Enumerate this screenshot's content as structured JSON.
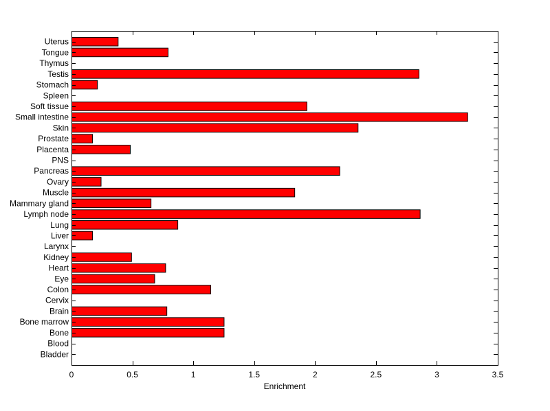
{
  "chart_data": {
    "type": "bar",
    "orientation": "horizontal",
    "title": "",
    "xlabel": "Enrichment",
    "ylabel": "",
    "xlim": [
      0,
      3.5
    ],
    "xticks": [
      "0",
      "0.5",
      "1",
      "1.5",
      "2",
      "2.5",
      "3",
      "3.5"
    ],
    "grid": false,
    "bar_color": "#ff0000",
    "bar_edge_color": "#000000",
    "categories": [
      "Uterus",
      "Tongue",
      "Thymus",
      "Testis",
      "Stomach",
      "Spleen",
      "Soft tissue",
      "Small intestine",
      "Skin",
      "Prostate",
      "Placenta",
      "PNS",
      "Pancreas",
      "Ovary",
      "Muscle",
      "Mammary gland",
      "Lymph node",
      "Lung",
      "Liver",
      "Larynx",
      "Kidney",
      "Heart",
      "Eye",
      "Colon",
      "Cervix",
      "Brain",
      "Bone marrow",
      "Bone",
      "Blood",
      "Bladder"
    ],
    "values": [
      0.38,
      0.79,
      0,
      2.85,
      0.21,
      0,
      1.93,
      3.25,
      2.35,
      0.17,
      0.48,
      0,
      2.2,
      0.24,
      1.83,
      0.65,
      2.86,
      0.87,
      0.17,
      0,
      0.49,
      0.77,
      0.68,
      1.14,
      0,
      0.78,
      1.25,
      1.25,
      0,
      0
    ]
  }
}
